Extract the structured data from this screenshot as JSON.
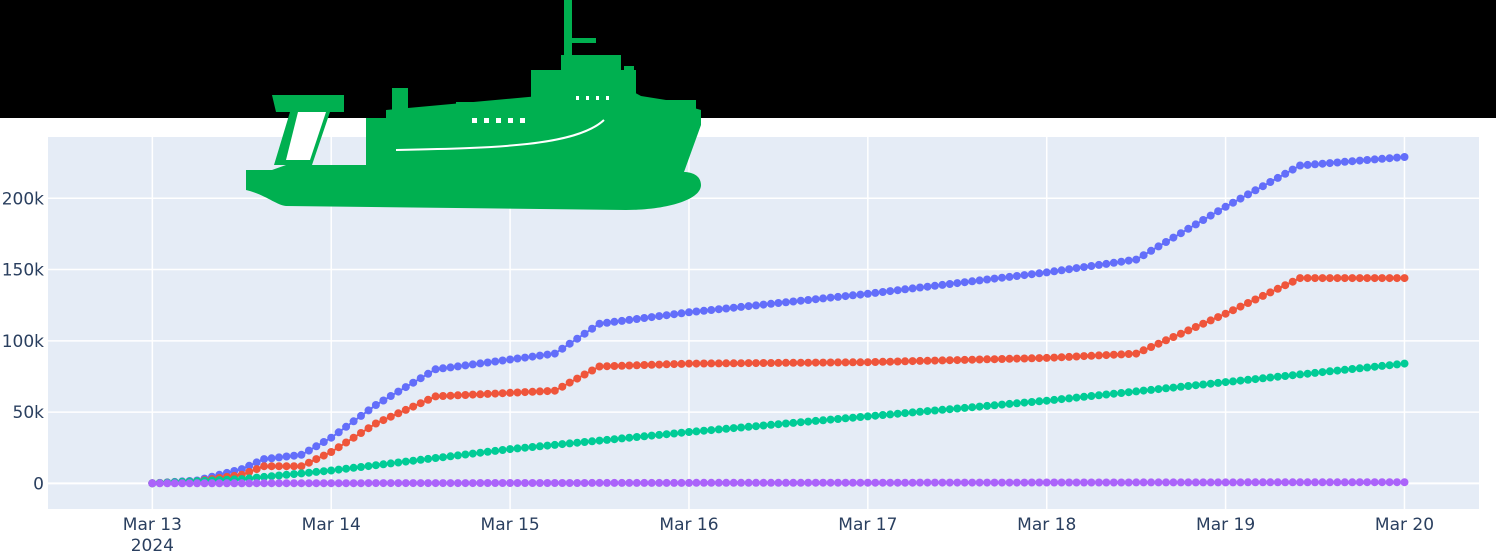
{
  "colors": {
    "background": "#ffffff",
    "band": "#000000",
    "plot_bg": "#e5ecf6",
    "grid": "#ffffff",
    "logo": "#00b050"
  },
  "logo": {
    "icon": "ship-icon"
  },
  "chart_data": {
    "type": "scatter",
    "mode": "lines+markers",
    "title": "",
    "xlabel": "",
    "ylabel": "",
    "x_type": "date",
    "x_start": "2024-03-13 00:00",
    "x_end": "2024-03-20 00:00",
    "x_step_hours": 1,
    "xlim": [
      "2024-03-12 10:00",
      "2024-03-20 10:00"
    ],
    "ylim": [
      -18000,
      243000
    ],
    "legend": "none",
    "grid": true,
    "x_ticks": [
      {
        "value": "2024-03-13",
        "label": "Mar 13",
        "sublabel": "2024"
      },
      {
        "value": "2024-03-14",
        "label": "Mar 14"
      },
      {
        "value": "2024-03-15",
        "label": "Mar 15"
      },
      {
        "value": "2024-03-16",
        "label": "Mar 16"
      },
      {
        "value": "2024-03-17",
        "label": "Mar 17"
      },
      {
        "value": "2024-03-18",
        "label": "Mar 18"
      },
      {
        "value": "2024-03-19",
        "label": "Mar 19"
      },
      {
        "value": "2024-03-20",
        "label": "Mar 20"
      }
    ],
    "y_ticks": [
      {
        "value": 0,
        "label": "0"
      },
      {
        "value": 50000,
        "label": "50k"
      },
      {
        "value": 100000,
        "label": "100k"
      },
      {
        "value": 150000,
        "label": "150k"
      },
      {
        "value": 200000,
        "label": "200k"
      }
    ],
    "series": [
      {
        "color": "#636efa",
        "keypoints": [
          [
            "2024-03-13 00:00",
            0
          ],
          [
            "2024-03-13 06:00",
            2000
          ],
          [
            "2024-03-13 12:00",
            10000
          ],
          [
            "2024-03-13 15:00",
            17000
          ],
          [
            "2024-03-13 20:00",
            20000
          ],
          [
            "2024-03-14 00:00",
            32000
          ],
          [
            "2024-03-14 06:00",
            55000
          ],
          [
            "2024-03-14 14:00",
            80000
          ],
          [
            "2024-03-15 06:00",
            91000
          ],
          [
            "2024-03-15 12:00",
            112000
          ],
          [
            "2024-03-16 00:00",
            120000
          ],
          [
            "2024-03-17 00:00",
            133000
          ],
          [
            "2024-03-18 00:00",
            148000
          ],
          [
            "2024-03-18 12:00",
            157000
          ],
          [
            "2024-03-19 00:00",
            194000
          ],
          [
            "2024-03-19 10:00",
            223000
          ],
          [
            "2024-03-20 00:00",
            229000
          ]
        ]
      },
      {
        "color": "#ef553b",
        "keypoints": [
          [
            "2024-03-13 00:00",
            0
          ],
          [
            "2024-03-13 06:00",
            1500
          ],
          [
            "2024-03-13 12:00",
            6000
          ],
          [
            "2024-03-13 15:00",
            12000
          ],
          [
            "2024-03-13 20:00",
            12000
          ],
          [
            "2024-03-14 00:00",
            22000
          ],
          [
            "2024-03-14 06:00",
            42000
          ],
          [
            "2024-03-14 14:00",
            61000
          ],
          [
            "2024-03-15 06:00",
            65000
          ],
          [
            "2024-03-15 12:00",
            82000
          ],
          [
            "2024-03-16 00:00",
            84000
          ],
          [
            "2024-03-17 00:00",
            85000
          ],
          [
            "2024-03-18 00:00",
            88000
          ],
          [
            "2024-03-18 12:00",
            91000
          ],
          [
            "2024-03-19 00:00",
            119000
          ],
          [
            "2024-03-19 10:00",
            144000
          ],
          [
            "2024-03-20 00:00",
            144000
          ]
        ]
      },
      {
        "color": "#00cc96",
        "keypoints": [
          [
            "2024-03-13 00:00",
            0
          ],
          [
            "2024-03-13 12:00",
            3000
          ],
          [
            "2024-03-14 00:00",
            9000
          ],
          [
            "2024-03-15 00:00",
            24000
          ],
          [
            "2024-03-16 00:00",
            36000
          ],
          [
            "2024-03-17 00:00",
            47000
          ],
          [
            "2024-03-18 00:00",
            58000
          ],
          [
            "2024-03-19 00:00",
            71000
          ],
          [
            "2024-03-20 00:00",
            84000
          ]
        ]
      },
      {
        "color": "#ab63fa",
        "keypoints": [
          [
            "2024-03-13 00:00",
            0
          ],
          [
            "2024-03-20 00:00",
            800
          ]
        ]
      }
    ]
  }
}
